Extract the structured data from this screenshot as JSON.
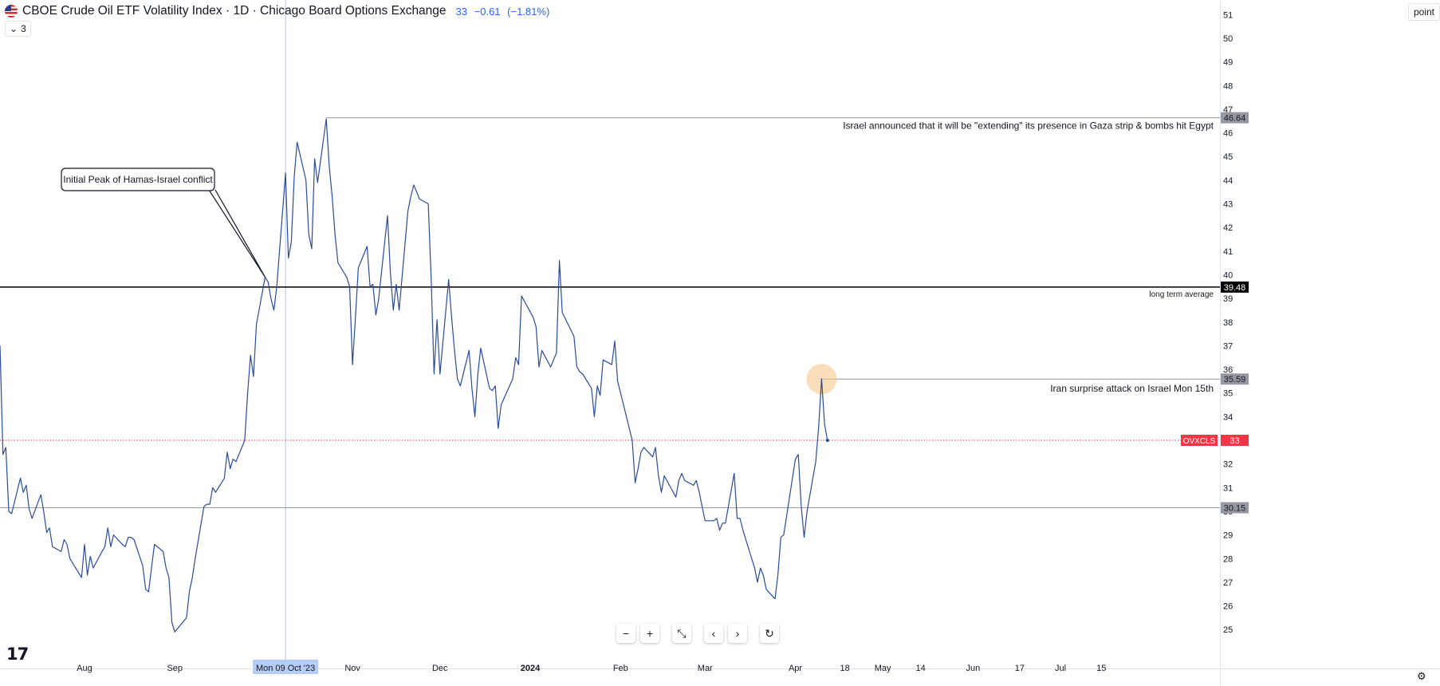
{
  "header": {
    "title": "CBOE Crude Oil ETF Volatility Index · 1D · Chicago Board Options Exchange",
    "last": "33",
    "change": "−0.61",
    "change_pct": "(−1.81%)",
    "indicator_count": "3"
  },
  "axis": {
    "unit": "point"
  },
  "chart_data": {
    "type": "line",
    "title": "CBOE Crude Oil ETF Volatility Index · 1D · Chicago Board Options Exchange",
    "xlabel": "",
    "ylabel": "",
    "ylim": [
      24.9,
      51.5
    ],
    "y_ticks": [
      25,
      26,
      27,
      28,
      29,
      30,
      31,
      32,
      33,
      34,
      35,
      36,
      37,
      38,
      39,
      40,
      41,
      42,
      43,
      44,
      45,
      46,
      47,
      48,
      49,
      50,
      51
    ],
    "x_ticks": [
      {
        "label": "Aug",
        "date": "2023-08-01",
        "bold": false
      },
      {
        "label": "Sep",
        "date": "2023-09-01",
        "bold": false
      },
      {
        "label": "Nov",
        "date": "2023-11-01",
        "bold": false
      },
      {
        "label": "Dec",
        "date": "2023-12-01",
        "bold": false
      },
      {
        "label": "2024",
        "date": "2024-01-01",
        "bold": true
      },
      {
        "label": "Feb",
        "date": "2024-02-01",
        "bold": false
      },
      {
        "label": "Mar",
        "date": "2024-03-01",
        "bold": false
      },
      {
        "label": "Apr",
        "date": "2024-04-01",
        "bold": false
      },
      {
        "label": "18",
        "date": "2024-04-18",
        "bold": false
      },
      {
        "label": "May",
        "date": "2024-05-01",
        "bold": false
      },
      {
        "label": "14",
        "date": "2024-05-14",
        "bold": false
      },
      {
        "label": "Jun",
        "date": "2024-06-01",
        "bold": false
      },
      {
        "label": "17",
        "date": "2024-06-17",
        "bold": false
      },
      {
        "label": "Jul",
        "date": "2024-07-01",
        "bold": false
      },
      {
        "label": "15",
        "date": "2024-07-15",
        "bold": false
      }
    ],
    "crosshair": {
      "date": "2023-10-09",
      "label": "Mon 09 Oct '23"
    },
    "grid": false,
    "series": [
      {
        "color": "#2a4a9a",
        "points": [
          [
            "2023-07-03",
            37.0
          ],
          [
            "2023-07-04",
            32.4
          ],
          [
            "2023-07-05",
            32.7
          ],
          [
            "2023-07-06",
            30.0
          ],
          [
            "2023-07-07",
            29.9
          ],
          [
            "2023-07-10",
            31.4
          ],
          [
            "2023-07-11",
            30.8
          ],
          [
            "2023-07-12",
            31.1
          ],
          [
            "2023-07-13",
            30.1
          ],
          [
            "2023-07-14",
            29.7
          ],
          [
            "2023-07-17",
            30.7
          ],
          [
            "2023-07-18",
            30.0
          ],
          [
            "2023-07-19",
            29.1
          ],
          [
            "2023-07-20",
            29.3
          ],
          [
            "2023-07-21",
            28.5
          ],
          [
            "2023-07-24",
            28.3
          ],
          [
            "2023-07-25",
            28.8
          ],
          [
            "2023-07-26",
            28.6
          ],
          [
            "2023-07-27",
            28.0
          ],
          [
            "2023-07-28",
            27.8
          ],
          [
            "2023-07-31",
            27.2
          ],
          [
            "2023-08-01",
            28.6
          ],
          [
            "2023-08-02",
            27.3
          ],
          [
            "2023-08-03",
            28.1
          ],
          [
            "2023-08-04",
            27.6
          ],
          [
            "2023-08-07",
            28.3
          ],
          [
            "2023-08-08",
            28.5
          ],
          [
            "2023-08-09",
            29.3
          ],
          [
            "2023-08-10",
            28.5
          ],
          [
            "2023-08-11",
            29.0
          ],
          [
            "2023-08-14",
            28.6
          ],
          [
            "2023-08-15",
            28.5
          ],
          [
            "2023-08-16",
            28.9
          ],
          [
            "2023-08-17",
            28.9
          ],
          [
            "2023-08-18",
            28.8
          ],
          [
            "2023-08-21",
            27.7
          ],
          [
            "2023-08-22",
            26.7
          ],
          [
            "2023-08-23",
            26.6
          ],
          [
            "2023-08-24",
            27.6
          ],
          [
            "2023-08-25",
            28.6
          ],
          [
            "2023-08-28",
            28.3
          ],
          [
            "2023-08-29",
            27.6
          ],
          [
            "2023-08-30",
            27.2
          ],
          [
            "2023-08-31",
            25.3
          ],
          [
            "2023-09-01",
            24.9
          ],
          [
            "2023-09-05",
            25.5
          ],
          [
            "2023-09-06",
            26.6
          ],
          [
            "2023-09-07",
            27.2
          ],
          [
            "2023-09-08",
            28.0
          ],
          [
            "2023-09-11",
            30.2
          ],
          [
            "2023-09-12",
            30.3
          ],
          [
            "2023-09-13",
            30.3
          ],
          [
            "2023-09-14",
            31.0
          ],
          [
            "2023-09-15",
            30.8
          ],
          [
            "2023-09-18",
            31.4
          ],
          [
            "2023-09-19",
            32.5
          ],
          [
            "2023-09-20",
            31.8
          ],
          [
            "2023-09-21",
            32.2
          ],
          [
            "2023-09-22",
            32.1
          ],
          [
            "2023-09-25",
            33.0
          ],
          [
            "2023-09-26",
            35.0
          ],
          [
            "2023-09-27",
            36.6
          ],
          [
            "2023-09-28",
            35.7
          ],
          [
            "2023-09-29",
            37.9
          ],
          [
            "2023-10-02",
            39.9
          ],
          [
            "2023-10-03",
            39.7
          ],
          [
            "2023-10-04",
            39.0
          ],
          [
            "2023-10-05",
            38.5
          ],
          [
            "2023-10-06",
            39.5
          ],
          [
            "2023-10-09",
            44.3
          ],
          [
            "2023-10-10",
            40.7
          ],
          [
            "2023-10-11",
            41.4
          ],
          [
            "2023-10-12",
            44.2
          ],
          [
            "2023-10-13",
            45.6
          ],
          [
            "2023-10-16",
            44.0
          ],
          [
            "2023-10-17",
            41.7
          ],
          [
            "2023-10-18",
            41.1
          ],
          [
            "2023-10-19",
            44.9
          ],
          [
            "2023-10-20",
            43.9
          ],
          [
            "2023-10-23",
            46.6
          ],
          [
            "2023-10-24",
            44.6
          ],
          [
            "2023-10-25",
            43.3
          ],
          [
            "2023-10-26",
            41.7
          ],
          [
            "2023-10-27",
            40.5
          ],
          [
            "2023-10-30",
            39.9
          ],
          [
            "2023-10-31",
            39.5
          ],
          [
            "2023-11-01",
            36.2
          ],
          [
            "2023-11-02",
            38.2
          ],
          [
            "2023-11-03",
            40.3
          ],
          [
            "2023-11-06",
            41.2
          ],
          [
            "2023-11-07",
            39.5
          ],
          [
            "2023-11-08",
            39.6
          ],
          [
            "2023-11-09",
            38.3
          ],
          [
            "2023-11-10",
            39.0
          ],
          [
            "2023-11-13",
            42.5
          ],
          [
            "2023-11-14",
            40.1
          ],
          [
            "2023-11-15",
            38.5
          ],
          [
            "2023-11-16",
            39.6
          ],
          [
            "2023-11-17",
            38.5
          ],
          [
            "2023-11-20",
            42.7
          ],
          [
            "2023-11-21",
            43.3
          ],
          [
            "2023-11-22",
            43.8
          ],
          [
            "2023-11-24",
            43.2
          ],
          [
            "2023-11-27",
            43.0
          ],
          [
            "2023-11-28",
            39.8
          ],
          [
            "2023-11-29",
            35.8
          ],
          [
            "2023-11-30",
            38.1
          ],
          [
            "2023-12-01",
            35.8
          ],
          [
            "2023-12-04",
            39.8
          ],
          [
            "2023-12-05",
            38.2
          ],
          [
            "2023-12-06",
            36.8
          ],
          [
            "2023-12-07",
            35.6
          ],
          [
            "2023-12-08",
            35.3
          ],
          [
            "2023-12-11",
            36.8
          ],
          [
            "2023-12-12",
            35.2
          ],
          [
            "2023-12-13",
            34.0
          ],
          [
            "2023-12-14",
            35.8
          ],
          [
            "2023-12-15",
            36.9
          ],
          [
            "2023-12-18",
            35.2
          ],
          [
            "2023-12-19",
            35.1
          ],
          [
            "2023-12-20",
            35.3
          ],
          [
            "2023-12-21",
            33.5
          ],
          [
            "2023-12-22",
            34.5
          ],
          [
            "2023-12-26",
            35.6
          ],
          [
            "2023-12-27",
            36.5
          ],
          [
            "2023-12-28",
            36.2
          ],
          [
            "2023-12-29",
            39.1
          ],
          [
            "2024-01-02",
            38.2
          ],
          [
            "2024-01-03",
            37.8
          ],
          [
            "2024-01-04",
            36.1
          ],
          [
            "2024-01-05",
            36.8
          ],
          [
            "2024-01-08",
            36.1
          ],
          [
            "2024-01-09",
            36.4
          ],
          [
            "2024-01-10",
            36.7
          ],
          [
            "2024-01-11",
            40.6
          ],
          [
            "2024-01-12",
            38.4
          ],
          [
            "2024-01-16",
            37.4
          ],
          [
            "2024-01-17",
            36.1
          ],
          [
            "2024-01-18",
            35.9
          ],
          [
            "2024-01-19",
            35.8
          ],
          [
            "2024-01-22",
            35.2
          ],
          [
            "2024-01-23",
            34.0
          ],
          [
            "2024-01-24",
            35.3
          ],
          [
            "2024-01-25",
            34.9
          ],
          [
            "2024-01-26",
            36.4
          ],
          [
            "2024-01-29",
            36.2
          ],
          [
            "2024-01-30",
            37.2
          ],
          [
            "2024-01-31",
            35.5
          ],
          [
            "2024-02-01",
            35.0
          ],
          [
            "2024-02-02",
            34.5
          ],
          [
            "2024-02-05",
            33.0
          ],
          [
            "2024-02-06",
            31.2
          ],
          [
            "2024-02-07",
            31.8
          ],
          [
            "2024-02-08",
            32.5
          ],
          [
            "2024-02-09",
            32.7
          ],
          [
            "2024-02-12",
            32.3
          ],
          [
            "2024-02-13",
            32.7
          ],
          [
            "2024-02-14",
            31.5
          ],
          [
            "2024-02-15",
            30.8
          ],
          [
            "2024-02-16",
            31.5
          ],
          [
            "2024-02-20",
            30.6
          ],
          [
            "2024-02-21",
            31.3
          ],
          [
            "2024-02-22",
            31.6
          ],
          [
            "2024-02-23",
            31.3
          ],
          [
            "2024-02-26",
            31.1
          ],
          [
            "2024-02-27",
            31.3
          ],
          [
            "2024-02-28",
            30.8
          ],
          [
            "2024-02-29",
            30.2
          ],
          [
            "2024-03-01",
            29.6
          ],
          [
            "2024-03-04",
            29.6
          ],
          [
            "2024-03-05",
            29.7
          ],
          [
            "2024-03-06",
            29.2
          ],
          [
            "2024-03-07",
            29.5
          ],
          [
            "2024-03-08",
            29.5
          ],
          [
            "2024-03-11",
            31.6
          ],
          [
            "2024-03-12",
            29.7
          ],
          [
            "2024-03-13",
            29.7
          ],
          [
            "2024-03-14",
            29.2
          ],
          [
            "2024-03-15",
            28.8
          ],
          [
            "2024-03-18",
            27.6
          ],
          [
            "2024-03-19",
            27.0
          ],
          [
            "2024-03-20",
            27.6
          ],
          [
            "2024-03-21",
            27.3
          ],
          [
            "2024-03-22",
            26.7
          ],
          [
            "2024-03-25",
            26.3
          ],
          [
            "2024-03-26",
            27.3
          ],
          [
            "2024-03-27",
            28.9
          ],
          [
            "2024-03-28",
            29.0
          ],
          [
            "2024-04-01",
            32.2
          ],
          [
            "2024-04-02",
            32.4
          ],
          [
            "2024-04-03",
            30.2
          ],
          [
            "2024-04-04",
            28.9
          ],
          [
            "2024-04-05",
            30.0
          ],
          [
            "2024-04-08",
            32.1
          ],
          [
            "2024-04-09",
            33.6
          ],
          [
            "2024-04-10",
            35.6
          ],
          [
            "2024-04-11",
            33.7
          ],
          [
            "2024-04-12",
            33.0
          ]
        ]
      }
    ],
    "levels": [
      {
        "value": 46.64,
        "label": "46.64",
        "style": "gray",
        "from": "2023-10-23"
      },
      {
        "value": 39.48,
        "label": "39.48",
        "style": "black",
        "from": null
      },
      {
        "value": 35.59,
        "label": "35.59",
        "style": "gray",
        "from": "2024-04-10"
      },
      {
        "value": 30.15,
        "label": "30.15",
        "style": "gray",
        "from": null
      },
      {
        "value": 33,
        "label": "33",
        "style": "price",
        "symbol": "OVXCLS",
        "from": null
      }
    ],
    "annotations": [
      {
        "text": "Israel announced that it will be \"extending\" its presence in Gaza strip & bombs hit Egypt",
        "y": 46.3
      },
      {
        "text": "long term average",
        "y": 39.2
      },
      {
        "text": "Iran surprise attack on Israel Mon 15th",
        "y": 35.2
      }
    ],
    "callout": {
      "text": "Initial Peak of Hamas-Israel conflict",
      "target_date": "2023-10-02",
      "target_value": 39.9
    },
    "highlight": {
      "date": "2024-04-10",
      "value": 35.59
    }
  },
  "toolbar": {
    "zoom_out": "−",
    "zoom_in": "+",
    "reset_scale": "⤡",
    "scroll_left": "‹",
    "scroll_right": "›",
    "reset": "↻"
  },
  "branding": {
    "logo": "17",
    "settings": "⚙"
  },
  "colors": {
    "line": "#2a4a9a",
    "price_badge": "#f23645",
    "level_gray": "#9598a1",
    "level_black": "#000000",
    "highlight": "#f7c78a",
    "crosshair": "#a9c5f5",
    "crosshair_label": "#b4cdf6"
  }
}
